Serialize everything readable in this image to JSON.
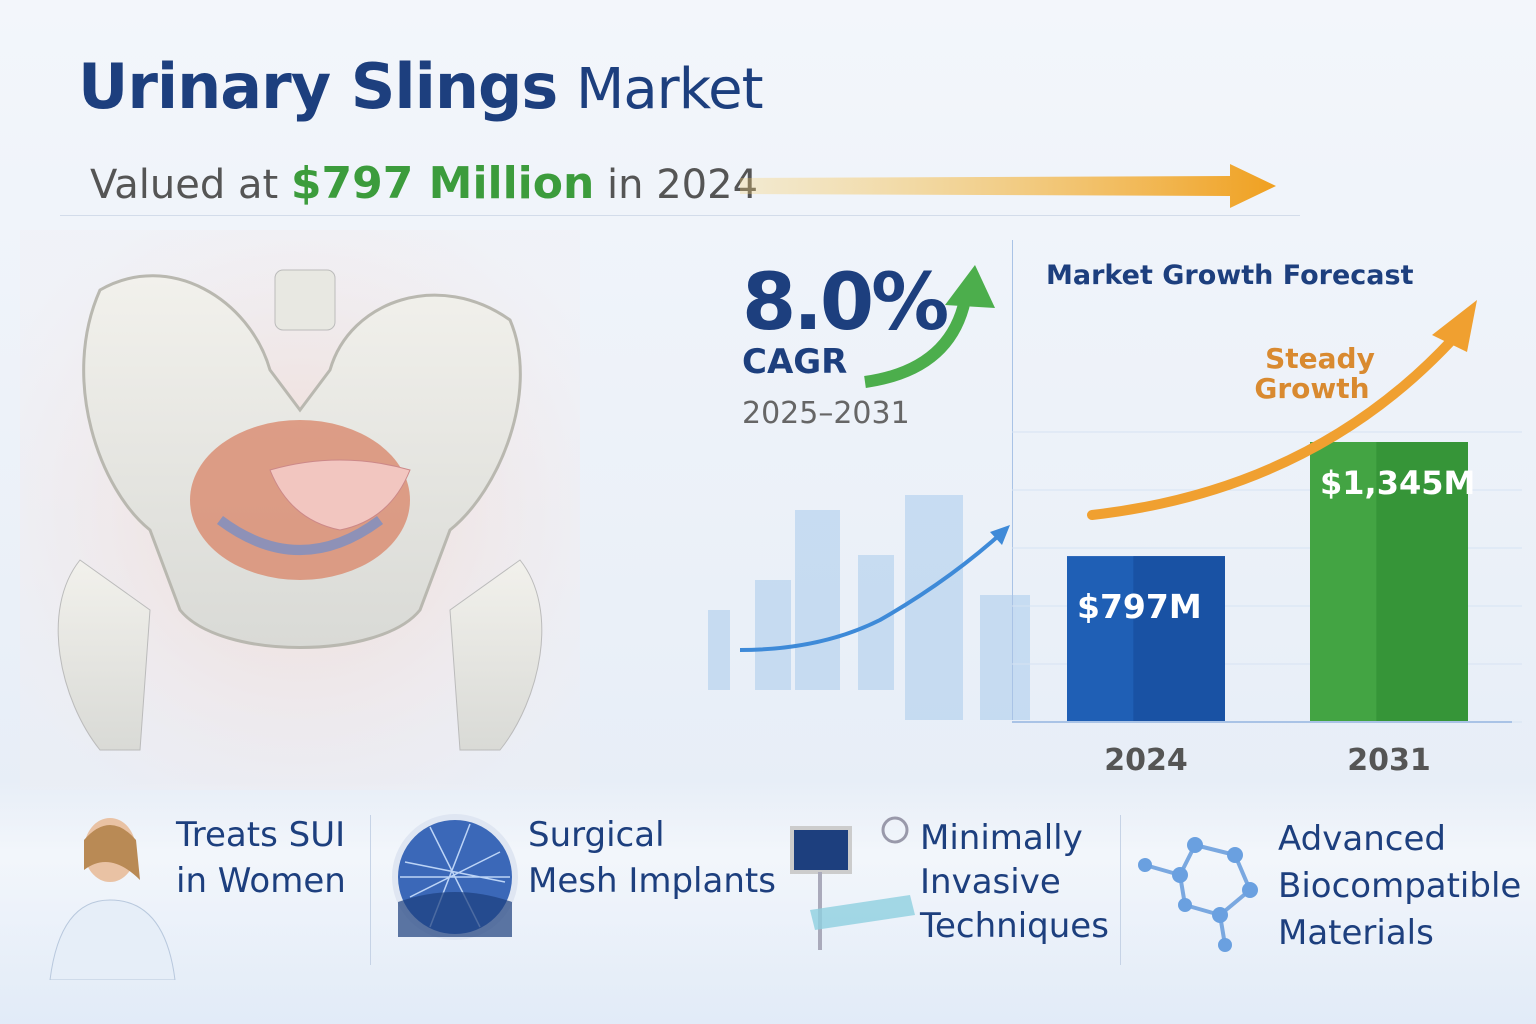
{
  "header": {
    "title_bold": "Urinary Slings",
    "title_rest": "Market",
    "valued_prefix": "Valued at",
    "valued_value": "$797 Million",
    "valued_suffix": "in 2024"
  },
  "cagr": {
    "value": "8.0%",
    "label": "CAGR",
    "period": "2025–2031"
  },
  "chart_data": {
    "type": "bar",
    "title": "Market Growth Forecast",
    "categories": [
      "2024",
      "2031"
    ],
    "values": [
      797,
      1345
    ],
    "data_labels": [
      "$797M",
      "$1,345M"
    ],
    "unit": "USD Million",
    "annotation": "Steady Growth",
    "colors": [
      "#1f5fb5",
      "#43a443"
    ],
    "grid": true
  },
  "features": [
    {
      "line1": "Treats SUI",
      "line2": "in Women",
      "icon": "woman-icon"
    },
    {
      "line1": "Surgical",
      "line2": "Mesh Implants",
      "icon": "mesh-icon"
    },
    {
      "line1": "Minimally",
      "line2": "Invasive",
      "line3": "Techniques",
      "icon": "surgical-monitor-icon"
    },
    {
      "line1": "Advanced",
      "line2": "Biocompatible",
      "line3": "Materials",
      "icon": "molecule-icon"
    }
  ],
  "colors": {
    "navy": "#1d3f7e",
    "green": "#3c9c3c",
    "orange": "#f0a030"
  }
}
